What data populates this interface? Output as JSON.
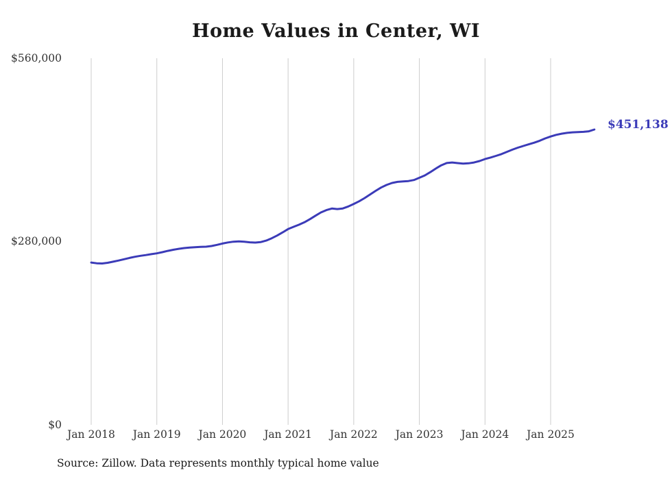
{
  "chart_data": {
    "type": "line",
    "title": "Home Values in Center, WI",
    "xlabel": "",
    "ylabel": "",
    "ylim": [
      0,
      560000
    ],
    "grid": "vertical-only",
    "legend": "none",
    "line_color": "#3b3bb8",
    "gridline_color": "#cccccc",
    "x_tick_labels": [
      "Jan 2018",
      "Jan 2019",
      "Jan 2020",
      "Jan 2021",
      "Jan 2022",
      "Jan 2023",
      "Jan 2024",
      "Jan 2025"
    ],
    "y_tick_labels": [
      "$0",
      "$280,000",
      "$560,000"
    ],
    "x_start_month": "Jan 2018",
    "x_end_month": "Sep 2025",
    "end_value_label": "$451,138",
    "source_note": "Source: Zillow. Data represents monthly typical home value",
    "series": [
      {
        "name": "Monthly typical home value",
        "values": [
          248000,
          246800,
          246500,
          247500,
          249200,
          251000,
          253000,
          255000,
          256800,
          258200,
          259400,
          260700,
          262000,
          263800,
          265800,
          267400,
          268900,
          270100,
          270900,
          271400,
          271800,
          272200,
          273200,
          275000,
          277000,
          278600,
          279800,
          280300,
          279800,
          278900,
          278400,
          279300,
          281500,
          285000,
          289200,
          294000,
          299000,
          302500,
          305800,
          309500,
          314200,
          319500,
          324500,
          328000,
          330500,
          329600,
          330600,
          333600,
          337500,
          341500,
          346500,
          352000,
          357500,
          362500,
          366500,
          369500,
          371200,
          371800,
          372400,
          374000,
          377500,
          381000,
          386000,
          391500,
          396500,
          400000,
          400800,
          399800,
          399000,
          399500,
          400800,
          403000,
          406000,
          408300,
          410800,
          413600,
          417000,
          420400,
          423400,
          426000,
          428500,
          431000,
          434000,
          437500,
          440500,
          443000,
          444800,
          446000,
          446800,
          447200,
          447600,
          448400,
          451138
        ]
      }
    ]
  }
}
